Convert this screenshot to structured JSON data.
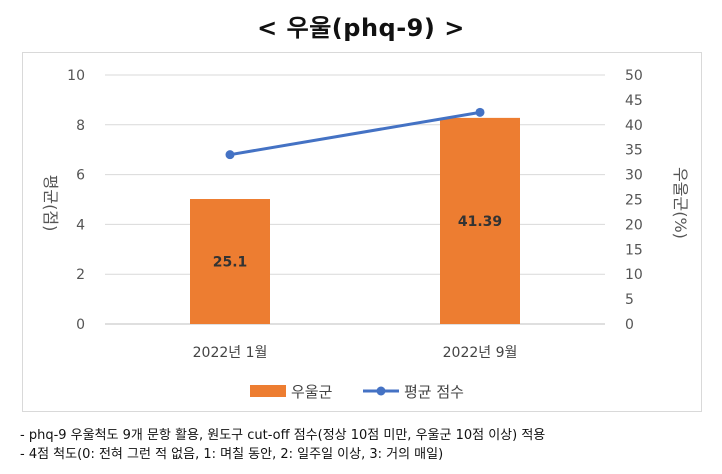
{
  "title": "< 우울(phq-9) >",
  "chart_data": {
    "type": "bar",
    "categories": [
      "2022년 1월",
      "2022년 9월"
    ],
    "series": [
      {
        "name": "우울군",
        "type": "bar",
        "axis": "right",
        "values": [
          25.1,
          41.39
        ],
        "labels": [
          "25.1",
          "41.39"
        ],
        "color": "#ED7D31"
      },
      {
        "name": "평균 점수",
        "type": "line",
        "axis": "left",
        "values": [
          6.8,
          8.5
        ],
        "color": "#4472C4"
      }
    ],
    "ylabel_left": "평균(점)",
    "ylabel_right": "우울군(%)",
    "ylim_left": [
      0,
      10
    ],
    "yticks_left": [
      "0",
      "2",
      "4",
      "6",
      "8",
      "10"
    ],
    "ylim_right": [
      0,
      50
    ],
    "yticks_right": [
      "0",
      "5",
      "10",
      "15",
      "20",
      "25",
      "30",
      "35",
      "40",
      "45",
      "50"
    ],
    "grid": true,
    "legend": "bottom"
  },
  "notes": [
    "- phq-9 우울척도 9개 문항 활용, 원도구 cut-off 점수(정상 10점 미만, 우울군 10점 이상) 적용",
    "- 4점 척도(0: 전혀 그런 적 없음, 1: 며칠 동안, 2: 일주일 이상, 3: 거의 매일)"
  ]
}
